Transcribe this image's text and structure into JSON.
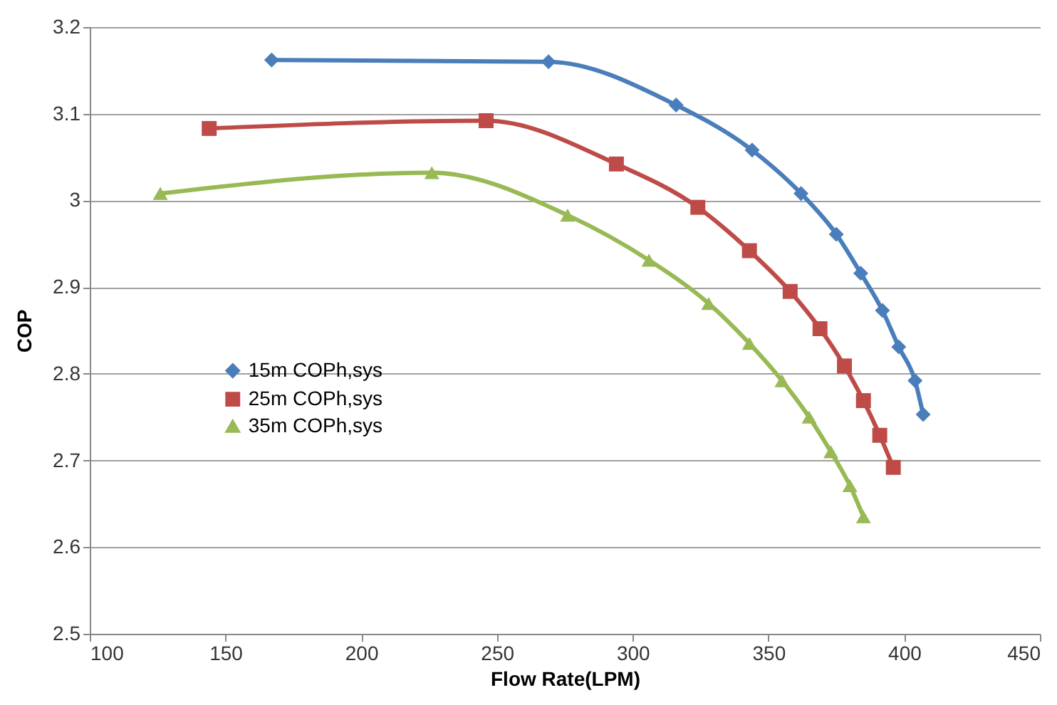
{
  "chart_data": {
    "type": "line",
    "xlabel": "Flow Rate(LPM)",
    "ylabel": "COP",
    "xlim": [
      100,
      450
    ],
    "xticks": [
      100,
      150,
      200,
      250,
      300,
      350,
      400,
      450
    ],
    "ylim": [
      2.5,
      3.2
    ],
    "yticks": [
      2.5,
      2.6,
      2.7,
      2.8,
      2.9,
      3,
      3.1,
      3.2
    ],
    "grid": "y",
    "legend": "left",
    "line_style": "solid",
    "series": [
      {
        "name": "15m COPh,sys",
        "color": "#4a7ebb",
        "marker": "diamond",
        "x": [
          167,
          269,
          316,
          344,
          362,
          375,
          384,
          392,
          398,
          404,
          407
        ],
        "values": [
          3.162,
          3.16,
          3.11,
          3.058,
          3.008,
          2.961,
          2.916,
          2.873,
          2.831,
          2.792,
          2.753
        ]
      },
      {
        "name": "25m COPh,sys",
        "color": "#be4b48",
        "marker": "square",
        "x": [
          144,
          246,
          294,
          324,
          343,
          358,
          369,
          378,
          385,
          391,
          396
        ],
        "values": [
          3.083,
          3.092,
          3.042,
          2.992,
          2.942,
          2.895,
          2.852,
          2.809,
          2.769,
          2.729,
          2.692
        ]
      },
      {
        "name": "35m COPh,sys",
        "color": "#98b954",
        "marker": "triangle",
        "x": [
          126,
          226,
          276,
          306,
          328,
          343,
          355,
          365,
          373,
          380,
          385
        ],
        "values": [
          3.008,
          3.032,
          2.983,
          2.931,
          2.881,
          2.835,
          2.792,
          2.75,
          2.71,
          2.671,
          2.635
        ]
      }
    ]
  }
}
